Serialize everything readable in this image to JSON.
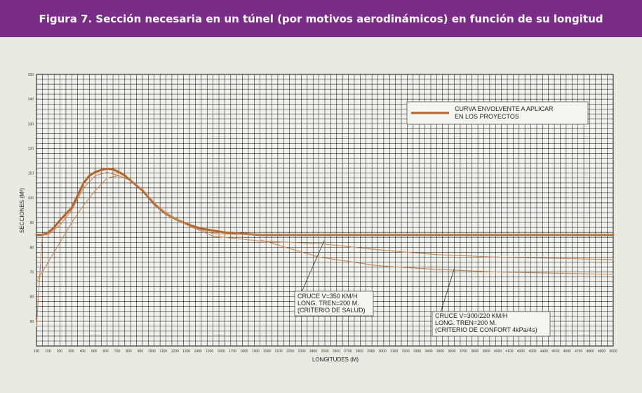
{
  "figure_title": "Figura 7. Sección necesaria en un túnel (por motivos aerodinámicos) en función de su longitud",
  "colors": {
    "banner": "#7a2d87",
    "envelope": "#b5652a",
    "thin": "#c8875a",
    "background": "#e9ebe3"
  },
  "chart_data": {
    "type": "line",
    "xlabel": "LONGITUDES (M)",
    "ylabel": "SECCIONES (M²)",
    "xlim": [
      100,
      5000
    ],
    "ylim": [
      40,
      150
    ],
    "x_ticks": [
      "100",
      "150",
      "200",
      "300",
      "400",
      "500",
      "600",
      "700",
      "800",
      "900",
      "1000",
      "1100",
      "1200",
      "1300",
      "1400",
      "1500",
      "1600",
      "1700",
      "1800",
      "1900",
      "2000",
      "2100",
      "2200",
      "2300",
      "2400",
      "2500",
      "2600",
      "2700",
      "2800",
      "2900",
      "3000",
      "3100",
      "3200",
      "3300",
      "3400",
      "3500",
      "3600",
      "3700",
      "3800",
      "3900",
      "4000",
      "4100",
      "4200",
      "4300",
      "4400",
      "4500",
      "4600",
      "4700",
      "4800",
      "4900",
      "5000"
    ],
    "y_ticks": [
      "50",
      "60",
      "70",
      "80",
      "90",
      "100",
      "110",
      "120",
      "130",
      "140",
      "150"
    ],
    "legend": {
      "entry": "CURVA ENVOLVENTE A APLICAR\nEN LOS PROYECTOS",
      "position": "top-right"
    },
    "grid": true,
    "series": [
      {
        "name": "CURVA ENVOLVENTE A APLICAR EN LOS PROYECTOS",
        "style": "thick",
        "x": [
          100,
          150,
          200,
          250,
          300,
          400,
          450,
          500,
          550,
          600,
          650,
          700,
          750,
          800,
          850,
          900,
          1000,
          1100,
          1200,
          1300,
          1400,
          1500,
          1700,
          2000,
          2500,
          5000
        ],
        "y": [
          85,
          85,
          86,
          88,
          91,
          96,
          101,
          106,
          109,
          110.5,
          111.3,
          111.8,
          111.5,
          110.5,
          109,
          107,
          103,
          97.5,
          93.5,
          91,
          89,
          87.5,
          86,
          85,
          85,
          85
        ]
      },
      {
        "style": "thin",
        "x": [
          100,
          150,
          200,
          300,
          400,
          500,
          600,
          700,
          800,
          900,
          1000,
          1100,
          1200,
          1400,
          1600,
          2000,
          2500,
          3000,
          3500,
          4000,
          5000
        ],
        "y": [
          48,
          85,
          85,
          89,
          95,
          104,
          109,
          110.3,
          109,
          107,
          103.5,
          98,
          93.5,
          88.5,
          85.5,
          85,
          85,
          85,
          85,
          85,
          85
        ]
      },
      {
        "style": "thin",
        "x": [
          100,
          150,
          200,
          300,
          400,
          500,
          600,
          700,
          800,
          900,
          1000,
          1100,
          1200,
          1400,
          1600,
          1800,
          2000,
          2500,
          3000,
          3500,
          4000,
          5000
        ],
        "y": [
          66,
          70,
          74,
          82,
          90,
          97,
          103,
          108,
          109,
          107,
          103.5,
          98,
          94,
          88.5,
          84.5,
          83.5,
          82.5,
          81.5,
          79,
          77,
          76,
          75
        ]
      },
      {
        "style": "thin",
        "x": [
          2000,
          2500,
          3000,
          3500,
          4000,
          5000
        ],
        "y": [
          83,
          76,
          72.5,
          71,
          70,
          69
        ]
      }
    ],
    "annotations": [
      "CRUCE V=350 KM/H\nLONG. TREN=200 M.\n(CRITERIO DE SALUD)",
      "CRUCE V=300/220 KM/H\nLONG. TREN=200 M.\n(CRITERIO DE CONFORT 4kPa/4s)"
    ]
  }
}
